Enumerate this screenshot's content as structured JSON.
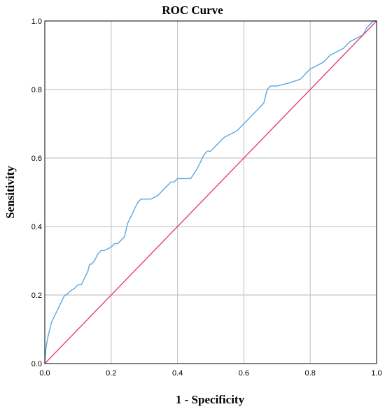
{
  "chart_data": {
    "type": "line",
    "title": "ROC Curve",
    "xlabel": "1 - Specificity",
    "ylabel": "Sensitivity",
    "xlim": [
      0,
      1
    ],
    "ylim": [
      0,
      1
    ],
    "grid": true,
    "xticks": [
      "0.0",
      "0.2",
      "0.4",
      "0.6",
      "0.8",
      "1.0"
    ],
    "yticks": [
      "0.0",
      "0.2",
      "0.4",
      "0.6",
      "0.8",
      "1.0"
    ],
    "colors": {
      "roc": "#5aa8e0",
      "reference": "#e8416b"
    },
    "series": [
      {
        "key": "roc",
        "x": [
          0,
          0.003,
          0.006,
          0.01,
          0.015,
          0.02,
          0.025,
          0.03,
          0.035,
          0.04,
          0.045,
          0.05,
          0.055,
          0.06,
          0.065,
          0.075,
          0.09,
          0.1,
          0.11,
          0.12,
          0.13,
          0.135,
          0.14,
          0.15,
          0.16,
          0.17,
          0.18,
          0.2,
          0.21,
          0.22,
          0.23,
          0.24,
          0.245,
          0.25,
          0.26,
          0.27,
          0.28,
          0.29,
          0.3,
          0.32,
          0.34,
          0.35,
          0.36,
          0.37,
          0.38,
          0.39,
          0.4,
          0.42,
          0.44,
          0.46,
          0.47,
          0.48,
          0.49,
          0.5,
          0.52,
          0.54,
          0.56,
          0.58,
          0.59,
          0.6,
          0.62,
          0.64,
          0.66,
          0.67,
          0.68,
          0.7,
          0.74,
          0.77,
          0.79,
          0.8,
          0.82,
          0.84,
          0.86,
          0.88,
          0.9,
          0.92,
          0.94,
          0.96,
          0.97,
          0.98,
          0.99,
          1
        ],
        "y": [
          0,
          0.04,
          0.06,
          0.08,
          0.1,
          0.12,
          0.13,
          0.14,
          0.15,
          0.16,
          0.17,
          0.18,
          0.19,
          0.2,
          0.2,
          0.21,
          0.22,
          0.23,
          0.23,
          0.25,
          0.27,
          0.29,
          0.29,
          0.3,
          0.32,
          0.33,
          0.33,
          0.34,
          0.35,
          0.35,
          0.36,
          0.37,
          0.39,
          0.41,
          0.43,
          0.45,
          0.47,
          0.48,
          0.48,
          0.48,
          0.49,
          0.5,
          0.51,
          0.52,
          0.53,
          0.53,
          0.54,
          0.54,
          0.54,
          0.57,
          0.59,
          0.61,
          0.62,
          0.62,
          0.64,
          0.66,
          0.67,
          0.68,
          0.69,
          0.7,
          0.72,
          0.74,
          0.76,
          0.8,
          0.81,
          0.81,
          0.82,
          0.83,
          0.85,
          0.86,
          0.87,
          0.88,
          0.9,
          0.91,
          0.92,
          0.94,
          0.95,
          0.96,
          0.98,
          0.99,
          1,
          1
        ]
      },
      {
        "key": "reference",
        "x": [
          0,
          1
        ],
        "y": [
          0,
          1
        ]
      }
    ]
  }
}
